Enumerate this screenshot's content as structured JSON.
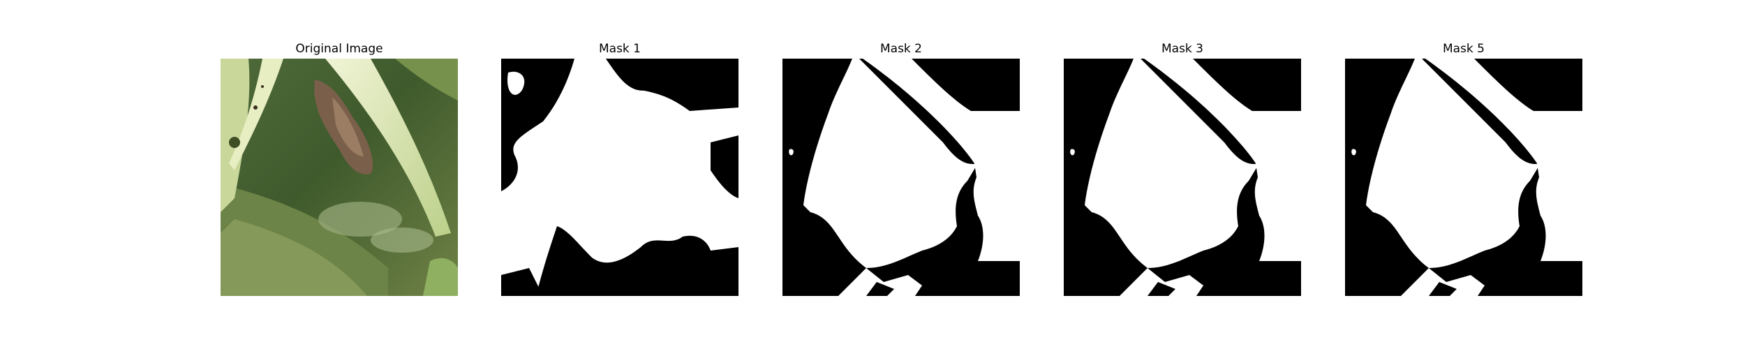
{
  "figure": {
    "panels": [
      {
        "title": "Original Image",
        "kind": "photo"
      },
      {
        "title": "Mask 1",
        "kind": "mask"
      },
      {
        "title": "Mask 2",
        "kind": "mask"
      },
      {
        "title": "Mask 3",
        "kind": "mask"
      },
      {
        "title": "Mask 5",
        "kind": "mask"
      }
    ],
    "colors": {
      "mask_foreground": "#ffffff",
      "mask_background": "#000000"
    }
  }
}
